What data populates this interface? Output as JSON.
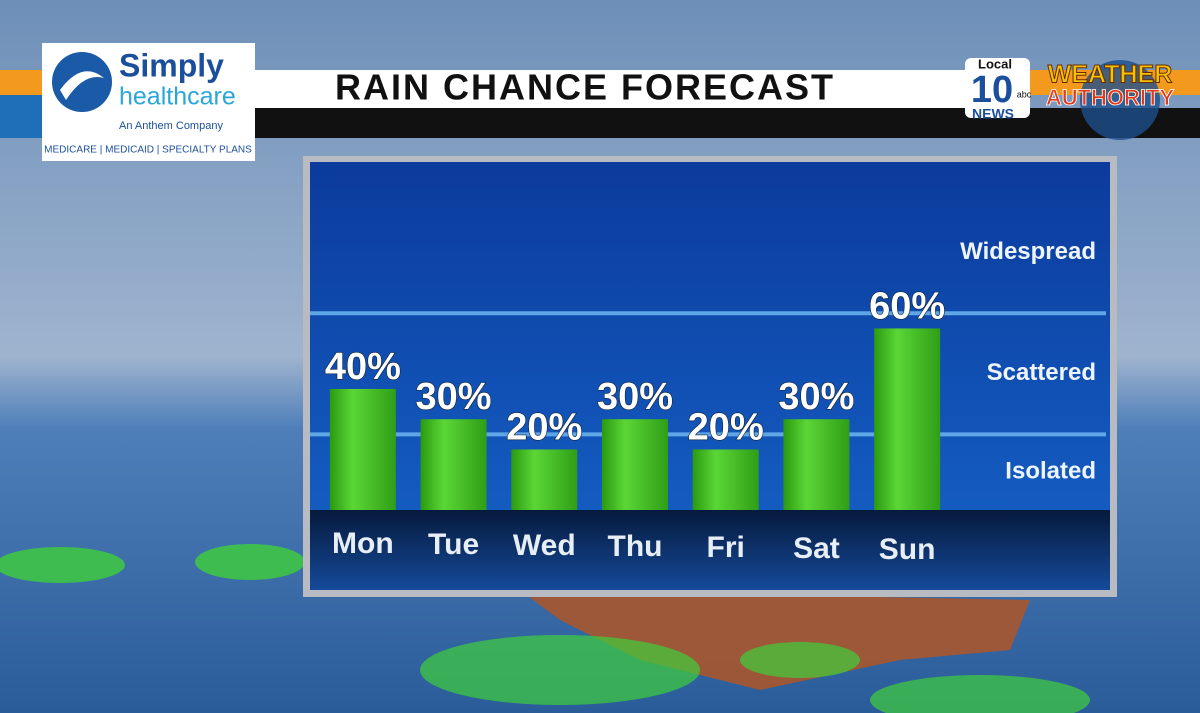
{
  "branding": {
    "sponsor_name_1": "Simply",
    "sponsor_name_2": "healthcare",
    "sponsor_tagline": "An Anthem Company",
    "sponsor_plans": "MEDICARE | MEDICAID | SPECIALTY PLANS",
    "station_local": "Local",
    "station_number": "10",
    "station_news": "NEWS",
    "station_network": "abc",
    "segment_1": "WEATHER",
    "segment_2": "AUTHORITY"
  },
  "chart_data": {
    "type": "bar",
    "title": "RAIN CHANCE FORECAST",
    "categories": [
      "Mon",
      "Tue",
      "Wed",
      "Thu",
      "Fri",
      "Sat",
      "Sun"
    ],
    "values": [
      40,
      30,
      20,
      30,
      20,
      30,
      60
    ],
    "value_labels": [
      "40%",
      "30%",
      "20%",
      "30%",
      "20%",
      "30%",
      "60%"
    ],
    "color": "#3fbf1f",
    "ylim": [
      0,
      115
    ],
    "zones": [
      {
        "label": "Isolated",
        "range": [
          0,
          25
        ]
      },
      {
        "label": "Scattered",
        "range": [
          25,
          65
        ]
      },
      {
        "label": "Widespread",
        "range": [
          65,
          115
        ]
      }
    ]
  }
}
